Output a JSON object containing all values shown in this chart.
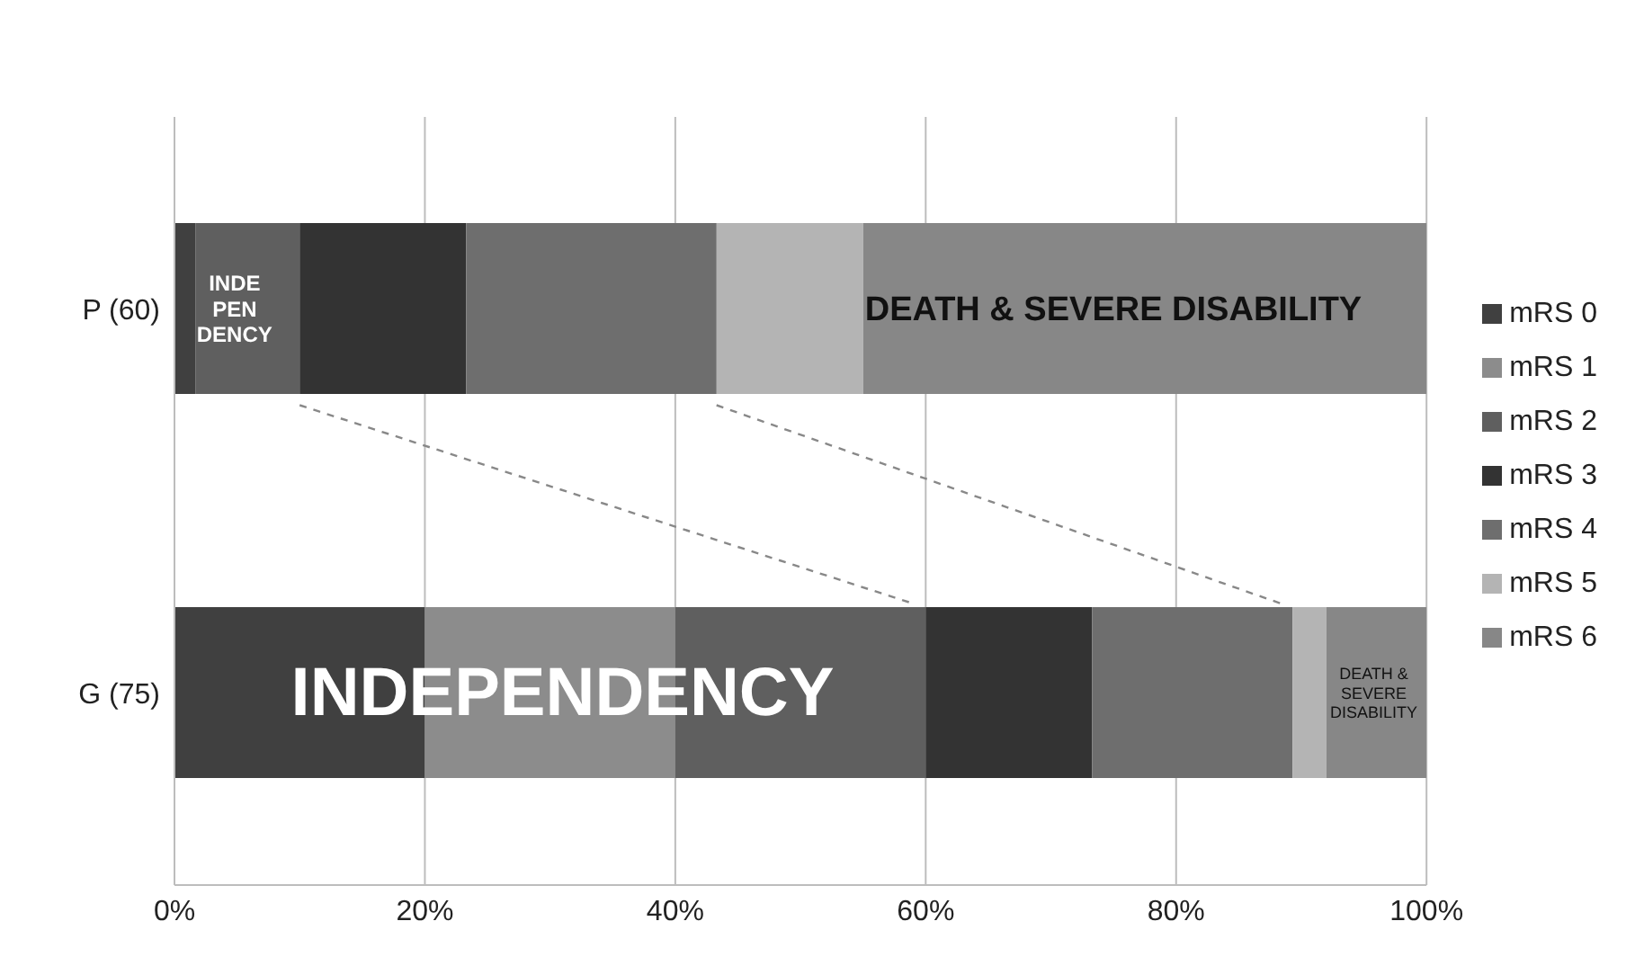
{
  "chart_data": {
    "type": "bar",
    "orientation": "horizontal",
    "stacked": true,
    "categories": [
      "P (60)",
      "G (75)"
    ],
    "series": [
      {
        "name": "mRS 0",
        "color": "#404040",
        "values": [
          1.7,
          20
        ]
      },
      {
        "name": "mRS 1",
        "color": "#8c8c8c",
        "values": [
          0,
          20
        ]
      },
      {
        "name": "mRS 2",
        "color": "#5f5f5f",
        "values": [
          8.3,
          20
        ]
      },
      {
        "name": "mRS 3",
        "color": "#333333",
        "values": [
          13.3,
          13.3
        ]
      },
      {
        "name": "mRS 4",
        "color": "#6e6e6e",
        "values": [
          20,
          16
        ]
      },
      {
        "name": "mRS 5",
        "color": "#b4b4b4",
        "values": [
          11.7,
          2.7
        ]
      },
      {
        "name": "mRS 6",
        "color": "#878787",
        "values": [
          45,
          8
        ]
      }
    ],
    "xlim": [
      0,
      100
    ],
    "xticks": [
      {
        "value": 0,
        "label": "0%"
      },
      {
        "value": 20,
        "label": "20%"
      },
      {
        "value": 40,
        "label": "40%"
      },
      {
        "value": 60,
        "label": "60%"
      },
      {
        "value": 80,
        "label": "80%"
      },
      {
        "value": 100,
        "label": "100%"
      }
    ],
    "grid": "x",
    "legend": "right",
    "annotations": [
      "INDE\nPEN\nDENCY",
      "DEATH & SEVERE DISABILITY",
      "INDEPENDENCY",
      "DEATH &\nSEVERE\nDISABILITY"
    ]
  }
}
